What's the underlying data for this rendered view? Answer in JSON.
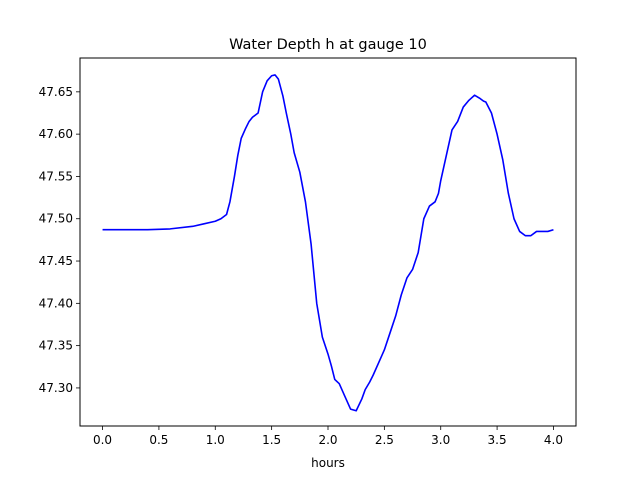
{
  "chart_data": {
    "type": "line",
    "title": "Water Depth h at gauge 10",
    "xlabel": "hours",
    "ylabel": "",
    "xlim": [
      -0.2,
      4.2
    ],
    "ylim": [
      47.255,
      47.69
    ],
    "xticks": [
      0.0,
      0.5,
      1.0,
      1.5,
      2.0,
      2.5,
      3.0,
      3.5,
      4.0
    ],
    "xtick_labels": [
      "0.0",
      "0.5",
      "1.0",
      "1.5",
      "2.0",
      "2.5",
      "3.0",
      "3.5",
      "4.0"
    ],
    "yticks": [
      47.3,
      47.35,
      47.4,
      47.45,
      47.5,
      47.55,
      47.6,
      47.65
    ],
    "ytick_labels": [
      "47.30",
      "47.35",
      "47.40",
      "47.45",
      "47.50",
      "47.55",
      "47.60",
      "47.65"
    ],
    "grid": false,
    "series": [
      {
        "color": "#0000ff",
        "x": [
          0.0,
          0.2,
          0.4,
          0.6,
          0.8,
          0.9,
          1.0,
          1.05,
          1.1,
          1.13,
          1.17,
          1.2,
          1.23,
          1.27,
          1.3,
          1.33,
          1.38,
          1.42,
          1.46,
          1.5,
          1.53,
          1.56,
          1.6,
          1.63,
          1.67,
          1.7,
          1.75,
          1.8,
          1.85,
          1.9,
          1.95,
          2.0,
          2.03,
          2.06,
          2.1,
          2.15,
          2.2,
          2.25,
          2.3,
          2.33,
          2.37,
          2.4,
          2.45,
          2.5,
          2.55,
          2.6,
          2.65,
          2.7,
          2.75,
          2.8,
          2.85,
          2.9,
          2.95,
          2.98,
          3.0,
          3.05,
          3.1,
          3.15,
          3.2,
          3.25,
          3.3,
          3.35,
          3.38,
          3.4,
          3.45,
          3.5,
          3.55,
          3.6,
          3.65,
          3.7,
          3.75,
          3.8,
          3.85,
          3.9,
          3.95,
          4.0
        ],
        "y": [
          47.487,
          47.487,
          47.487,
          47.488,
          47.491,
          47.494,
          47.497,
          47.5,
          47.505,
          47.52,
          47.55,
          47.575,
          47.595,
          47.607,
          47.615,
          47.62,
          47.625,
          47.65,
          47.663,
          47.669,
          47.67,
          47.665,
          47.645,
          47.625,
          47.6,
          47.578,
          47.555,
          47.52,
          47.47,
          47.4,
          47.36,
          47.34,
          47.326,
          47.31,
          47.305,
          47.29,
          47.275,
          47.273,
          47.287,
          47.298,
          47.307,
          47.315,
          47.33,
          47.345,
          47.365,
          47.385,
          47.41,
          47.43,
          47.44,
          47.46,
          47.5,
          47.515,
          47.52,
          47.53,
          47.545,
          47.575,
          47.605,
          47.615,
          47.632,
          47.64,
          47.646,
          47.642,
          47.639,
          47.638,
          47.625,
          47.6,
          47.57,
          47.53,
          47.5,
          47.485,
          47.48,
          47.48,
          47.485,
          47.485,
          47.485,
          47.487
        ]
      }
    ]
  }
}
